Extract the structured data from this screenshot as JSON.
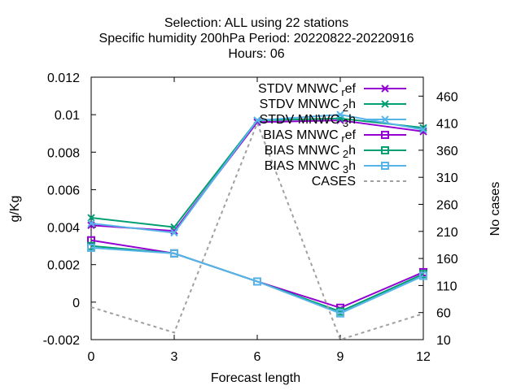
{
  "title_lines": [
    "Selection: ALL using    22 stations",
    "Specific humidity 200hPa   Period: 20220822-20220916",
    "Hours:  06"
  ],
  "chart_data": {
    "type": "line",
    "x": [
      0,
      3,
      6,
      9,
      12
    ],
    "xlabel": "Forecast length",
    "ylabel": "g/Kg",
    "y2label": "No cases",
    "xlim": [
      0,
      12
    ],
    "ylim": [
      -0.002,
      0.012
    ],
    "y2lim": [
      10,
      495
    ],
    "xticks": [
      "0",
      "3",
      "6",
      "9",
      "12"
    ],
    "yticks": [
      "-0.002",
      "0",
      "0.002",
      "0.004",
      "0.006",
      "0.008",
      "0.01",
      "0.012"
    ],
    "y2ticks": [
      "10",
      "60",
      "110",
      "160",
      "210",
      "260",
      "310",
      "360",
      "410",
      "460"
    ],
    "grid": false,
    "legend_position": "top-right",
    "series": [
      {
        "name": "STDV MNWC_ref",
        "label_main": "STDV MNWC",
        "label_sub": "r",
        "label_tail": "ef",
        "axis": "y",
        "color": "#9400d3",
        "marker": "x",
        "dash": false,
        "values": [
          0.0041,
          0.0038,
          0.0096,
          0.0097,
          0.0091
        ]
      },
      {
        "name": "STDV MNWC_2h",
        "label_main": "STDV MNWC",
        "label_sub": "2",
        "label_tail": "h",
        "axis": "y",
        "color": "#009e73",
        "marker": "x",
        "dash": false,
        "values": [
          0.0045,
          0.004,
          0.0097,
          0.0098,
          0.0093
        ]
      },
      {
        "name": "STDV MNWC_3h",
        "label_main": "STDV MNWC",
        "label_sub": "3",
        "label_tail": "h",
        "axis": "y",
        "color": "#56b4e9",
        "marker": "x",
        "dash": false,
        "values": [
          0.0042,
          0.0037,
          0.0097,
          0.01,
          0.0092
        ]
      },
      {
        "name": "BIAS MNWC_ref",
        "label_main": "BIAS MNWC",
        "label_sub": "r",
        "label_tail": "ef",
        "axis": "y",
        "color": "#9400d3",
        "marker": "square",
        "dash": false,
        "values": [
          0.0033,
          0.0026,
          0.0011,
          -0.0003,
          0.0016
        ]
      },
      {
        "name": "BIAS MNWC_2h",
        "label_main": "BIAS MNWC",
        "label_sub": "2",
        "label_tail": "h",
        "axis": "y",
        "color": "#009e73",
        "marker": "square",
        "dash": false,
        "values": [
          0.003,
          0.0026,
          0.0011,
          -0.0005,
          0.0015
        ]
      },
      {
        "name": "BIAS MNWC_3h",
        "label_main": "BIAS MNWC",
        "label_sub": "3",
        "label_tail": "h",
        "axis": "y",
        "color": "#56b4e9",
        "marker": "square",
        "dash": false,
        "values": [
          0.0029,
          0.0026,
          0.0011,
          -0.0006,
          0.0014
        ]
      },
      {
        "name": "CASES",
        "label_main": "CASES",
        "label_sub": "",
        "label_tail": "",
        "axis": "y2",
        "color": "#a0a0a0",
        "marker": "none",
        "dash": true,
        "values": [
          70,
          23,
          410,
          10,
          58
        ]
      }
    ]
  }
}
